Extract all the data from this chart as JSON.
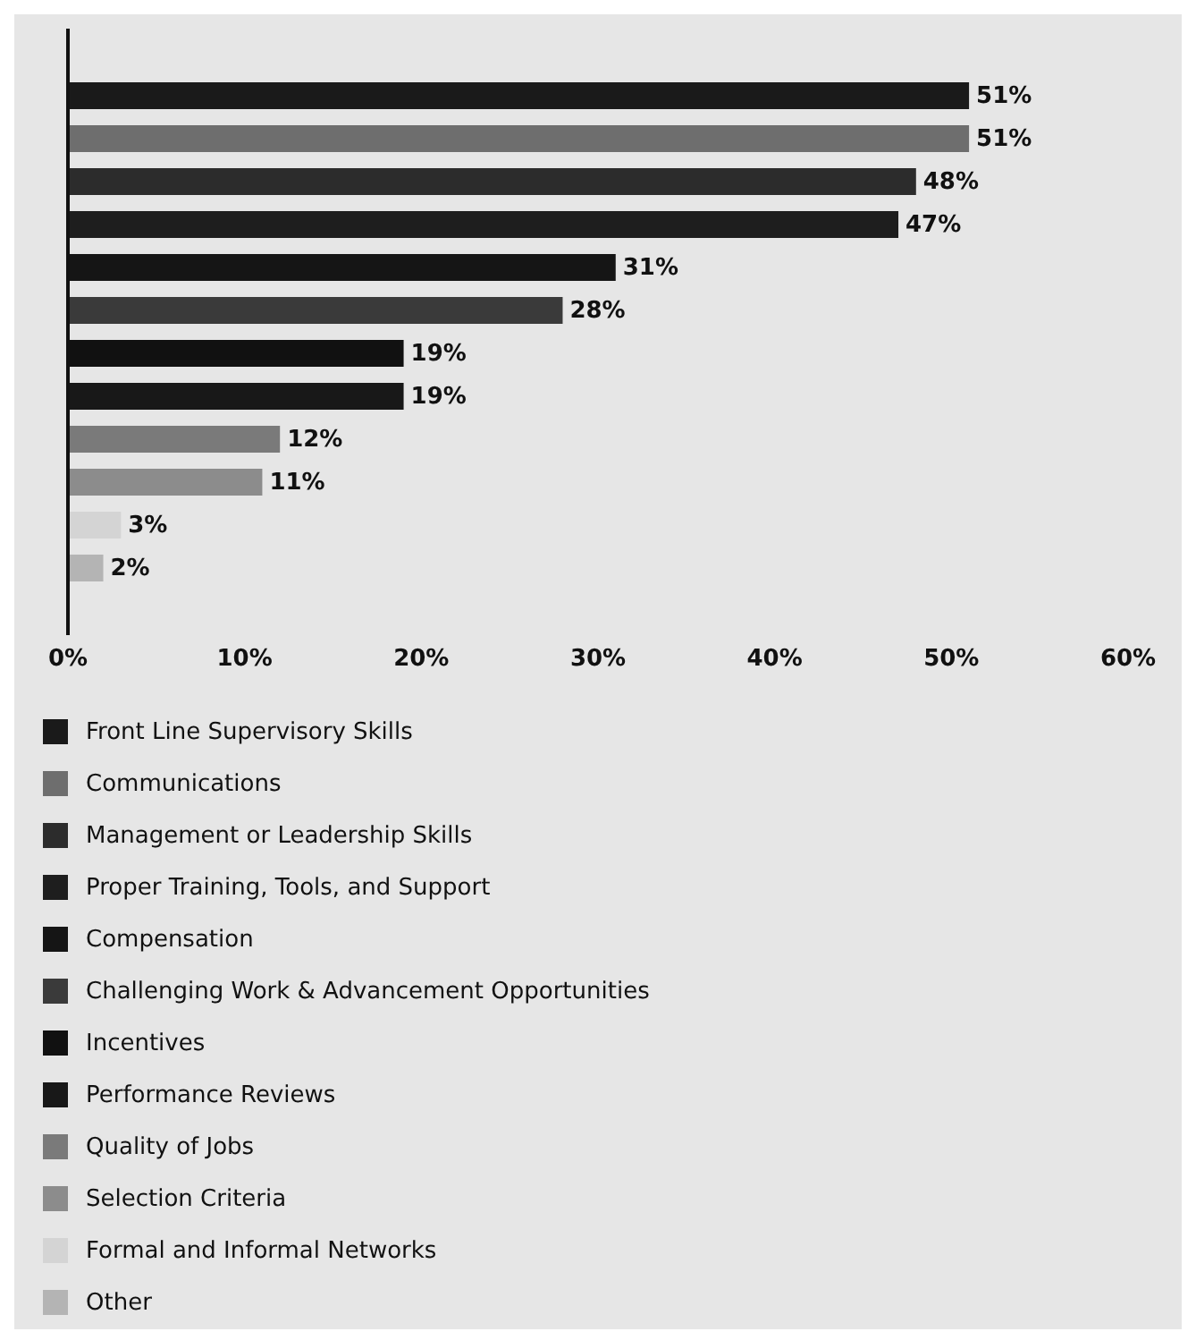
{
  "chart_data": {
    "type": "bar",
    "orientation": "horizontal",
    "categories": [
      null
    ],
    "series": [
      {
        "name": "Front Line Supervisory Skills",
        "color": "#1a1a1a",
        "values": [
          51
        ],
        "value_labels": [
          "51%"
        ]
      },
      {
        "name": "Communications",
        "color": "#6e6e6e",
        "values": [
          51
        ],
        "value_labels": [
          "51%"
        ]
      },
      {
        "name": "Management or Leadership Skills",
        "color": "#2c2c2c",
        "values": [
          48
        ],
        "value_labels": [
          "48%"
        ]
      },
      {
        "name": "Proper Training, Tools, and Support",
        "color": "#1e1e1e",
        "values": [
          47
        ],
        "value_labels": [
          "47%"
        ]
      },
      {
        "name": "Compensation",
        "color": "#151515",
        "values": [
          31
        ],
        "value_labels": [
          "31%"
        ]
      },
      {
        "name": "Challenging Work & Advancement Opportunities",
        "color": "#3a3a3a",
        "values": [
          28
        ],
        "value_labels": [
          "28%"
        ]
      },
      {
        "name": "Incentives",
        "color": "#111111",
        "values": [
          19
        ],
        "value_labels": [
          "19%"
        ]
      },
      {
        "name": "Performance Reviews",
        "color": "#181818",
        "values": [
          19
        ],
        "value_labels": [
          "19%"
        ]
      },
      {
        "name": "Quality of Jobs",
        "color": "#7a7a7a",
        "values": [
          12
        ],
        "value_labels": [
          "12%"
        ]
      },
      {
        "name": "Selection Criteria",
        "color": "#8c8c8c",
        "values": [
          11
        ],
        "value_labels": [
          "11%"
        ]
      },
      {
        "name": "Formal and Informal Networks",
        "color": "#d4d4d4",
        "values": [
          3
        ],
        "value_labels": [
          "3%"
        ]
      },
      {
        "name": "Other",
        "color": "#b4b4b4",
        "values": [
          2
        ],
        "value_labels": [
          "2%"
        ]
      }
    ],
    "xlim": [
      0,
      60
    ],
    "xticks": [
      {
        "value": 0,
        "label": "0%"
      },
      {
        "value": 10,
        "label": "10%"
      },
      {
        "value": 20,
        "label": "20%"
      },
      {
        "value": 30,
        "label": "30%"
      },
      {
        "value": 40,
        "label": "40%"
      },
      {
        "value": 50,
        "label": "50%"
      },
      {
        "value": 60,
        "label": "60%"
      }
    ],
    "tick_labels": "x",
    "legend": "bottom"
  }
}
